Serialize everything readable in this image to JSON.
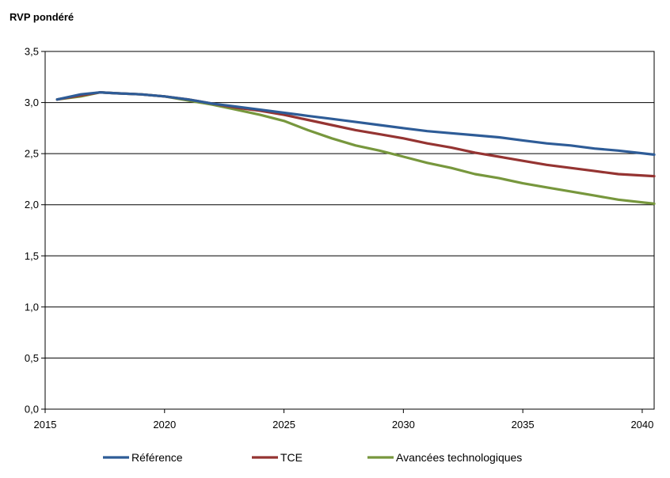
{
  "chart_data": {
    "type": "line",
    "title": "",
    "ylabel": "RVP pondéré",
    "xlabel": "",
    "xlim": [
      2015,
      2040.5
    ],
    "ylim": [
      0,
      3.5
    ],
    "xticks": [
      2015,
      2020,
      2025,
      2030,
      2035,
      2040
    ],
    "xtick_labels": [
      "2015",
      "2020",
      "2025",
      "2030",
      "2035",
      "2040"
    ],
    "yticks": [
      0,
      0.5,
      1.0,
      1.5,
      2.0,
      2.5,
      3.0,
      3.5
    ],
    "ytick_labels": [
      "0,0",
      "0,5",
      "1,0",
      "1,5",
      "2,0",
      "2,5",
      "3,0",
      "3,5"
    ],
    "grid": "horizontal",
    "legend_position": "bottom",
    "x": [
      2015.5,
      2016.5,
      2017.3,
      2018,
      2019,
      2020,
      2021,
      2022,
      2023,
      2024,
      2025,
      2026,
      2027,
      2028,
      2029,
      2030,
      2031,
      2032,
      2033,
      2034,
      2035,
      2036,
      2037,
      2038,
      2039,
      2040.5
    ],
    "series": [
      {
        "name": "Référence",
        "color": "#2E5C97",
        "values": [
          3.03,
          3.08,
          3.1,
          3.09,
          3.08,
          3.06,
          3.03,
          2.99,
          2.96,
          2.93,
          2.9,
          2.87,
          2.84,
          2.81,
          2.78,
          2.75,
          2.72,
          2.7,
          2.68,
          2.66,
          2.63,
          2.6,
          2.58,
          2.55,
          2.53,
          2.49
        ]
      },
      {
        "name": "TCE",
        "color": "#953432",
        "values": [
          3.03,
          3.07,
          3.1,
          3.09,
          3.08,
          3.06,
          3.03,
          2.99,
          2.95,
          2.92,
          2.88,
          2.83,
          2.78,
          2.73,
          2.69,
          2.65,
          2.6,
          2.56,
          2.51,
          2.47,
          2.43,
          2.39,
          2.36,
          2.33,
          2.3,
          2.28
        ]
      },
      {
        "name": "Avancées technologiques",
        "color": "#77973D",
        "values": [
          3.03,
          3.06,
          3.1,
          3.09,
          3.08,
          3.06,
          3.02,
          2.98,
          2.93,
          2.88,
          2.82,
          2.73,
          2.65,
          2.58,
          2.53,
          2.47,
          2.41,
          2.36,
          2.3,
          2.26,
          2.21,
          2.17,
          2.13,
          2.09,
          2.05,
          2.01
        ]
      }
    ]
  }
}
